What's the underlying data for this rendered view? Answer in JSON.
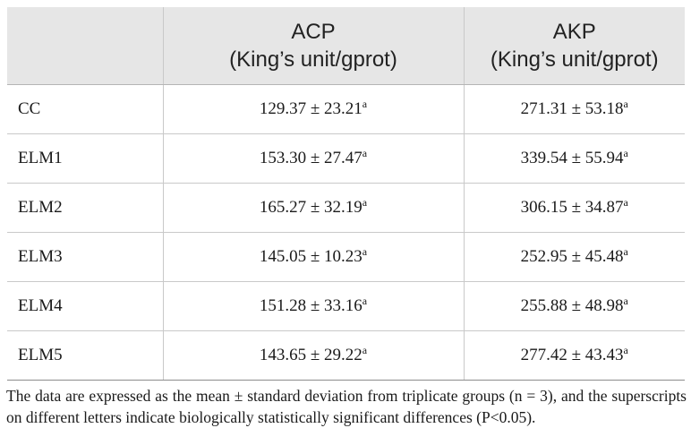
{
  "table": {
    "columns": [
      {
        "name": "",
        "unit": ""
      },
      {
        "name": "ACP",
        "unit": "(King’s unit/gprot)"
      },
      {
        "name": "AKP",
        "unit": "(King’s unit/gprot)"
      }
    ],
    "rows": [
      {
        "label": "CC",
        "acp": "129.37 ± 23.21",
        "acp_sup": "a",
        "akp": "271.31 ± 53.18",
        "akp_sup": "a"
      },
      {
        "label": "ELM1",
        "acp": "153.30 ± 27.47",
        "acp_sup": "a",
        "akp": "339.54 ± 55.94",
        "akp_sup": "a"
      },
      {
        "label": "ELM2",
        "acp": "165.27 ± 32.19",
        "acp_sup": "a",
        "akp": "306.15 ± 34.87",
        "akp_sup": "a"
      },
      {
        "label": "ELM3",
        "acp": "145.05 ± 10.23",
        "acp_sup": "a",
        "akp": "252.95 ± 45.48",
        "akp_sup": "a"
      },
      {
        "label": "ELM4",
        "acp": "151.28 ± 33.16",
        "acp_sup": "a",
        "akp": "255.88 ± 48.98",
        "akp_sup": "a"
      },
      {
        "label": "ELM5",
        "acp": "143.65 ± 29.22",
        "acp_sup": "a",
        "akp": "277.42 ± 43.43",
        "akp_sup": "a"
      }
    ]
  },
  "footnote": "The data are expressed as the mean ± standard deviation from triplicate groups (n = 3), and the superscripts on different letters indicate biologically statistically significant differences (P<0.05).",
  "colors": {
    "header_background": "#e6e6e6",
    "grid_line": "#c9c9c9"
  }
}
